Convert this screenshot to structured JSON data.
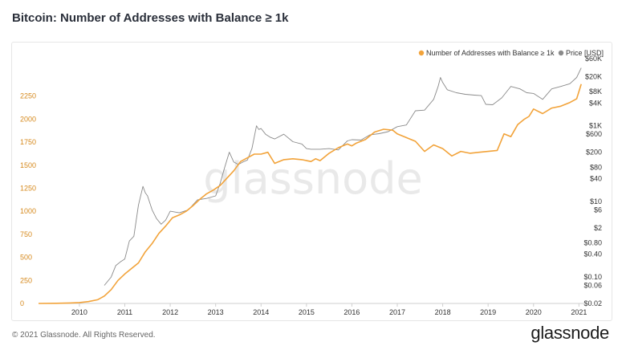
{
  "page": {
    "title": "Bitcoin: Number of Addresses with Balance ≥ 1k",
    "copyright": "© 2021 Glassnode. All Rights Reserved.",
    "brand": "glassnode",
    "watermark": "glassnode"
  },
  "colors": {
    "primary": "#f2a33a",
    "price": "#8a8a8a",
    "left_axis_text": "#d6891c"
  },
  "chart_data": {
    "type": "line",
    "title": "Bitcoin: Number of Addresses with Balance ≥ 1k",
    "legend_position": "top-right",
    "x_ticks": [
      "2010",
      "2011",
      "2012",
      "2013",
      "2014",
      "2015",
      "2016",
      "2017",
      "2018",
      "2019",
      "2020",
      "2021"
    ],
    "xlim": [
      2009.1,
      2021.1
    ],
    "y_left": {
      "label": "Number of Addresses with Balance ≥ 1k",
      "ticks": [
        0,
        250,
        500,
        750,
        1000,
        1250,
        1500,
        1750,
        2000,
        2250
      ],
      "range": [
        0,
        2500
      ]
    },
    "y_right": {
      "label": "Price [USD]",
      "scale": "log",
      "tick_labels": [
        "$60K",
        "$20K",
        "$8K",
        "$4K",
        "$1K",
        "$600",
        "$200",
        "$80",
        "$40",
        "$10",
        "$6",
        "$2",
        "$0.80",
        "$0.40",
        "$0.10",
        "$0.06",
        "$0.02"
      ],
      "tick_values": [
        60000,
        20000,
        8000,
        4000,
        1000,
        600,
        200,
        80,
        40,
        10,
        6,
        2,
        0.8,
        0.4,
        0.1,
        0.06,
        0.02
      ],
      "range": [
        0.02,
        60000
      ]
    },
    "series": [
      {
        "name": "Number of Addresses with Balance ≥ 1k",
        "color": "#f2a33a",
        "x": [
          2009.1,
          2009.5,
          2009.8,
          2010.0,
          2010.2,
          2010.4,
          2010.55,
          2010.7,
          2010.85,
          2011.0,
          2011.15,
          2011.3,
          2011.45,
          2011.6,
          2011.75,
          2011.9,
          2012.05,
          2012.2,
          2012.35,
          2012.5,
          2012.65,
          2012.8,
          2012.95,
          2013.1,
          2013.25,
          2013.4,
          2013.55,
          2013.7,
          2013.85,
          2014.0,
          2014.15,
          2014.3,
          2014.5,
          2014.7,
          2014.9,
          2015.1,
          2015.2,
          2015.3,
          2015.5,
          2015.7,
          2015.9,
          2016.0,
          2016.1,
          2016.3,
          2016.5,
          2016.7,
          2016.9,
          2017.0,
          2017.2,
          2017.4,
          2017.6,
          2017.8,
          2018.0,
          2018.2,
          2018.4,
          2018.6,
          2018.8,
          2019.0,
          2019.2,
          2019.35,
          2019.5,
          2019.65,
          2019.8,
          2019.9,
          2020.0,
          2020.2,
          2020.4,
          2020.6,
          2020.8,
          2020.95,
          2021.05
        ],
        "values": [
          0,
          2,
          5,
          10,
          20,
          40,
          80,
          150,
          250,
          320,
          380,
          440,
          560,
          650,
          760,
          840,
          930,
          960,
          1000,
          1060,
          1130,
          1190,
          1230,
          1280,
          1360,
          1440,
          1540,
          1580,
          1620,
          1620,
          1640,
          1520,
          1560,
          1570,
          1560,
          1540,
          1570,
          1550,
          1630,
          1690,
          1730,
          1710,
          1740,
          1780,
          1860,
          1890,
          1880,
          1840,
          1800,
          1760,
          1650,
          1720,
          1680,
          1600,
          1650,
          1630,
          1640,
          1650,
          1660,
          1840,
          1810,
          1940,
          2000,
          2030,
          2110,
          2060,
          2120,
          2140,
          2180,
          2220,
          2380
        ]
      },
      {
        "name": "Price [USD]",
        "color": "#8a8a8a",
        "x": [
          2010.55,
          2010.7,
          2010.8,
          2010.9,
          2011.0,
          2011.1,
          2011.2,
          2011.3,
          2011.4,
          2011.45,
          2011.5,
          2011.6,
          2011.7,
          2011.8,
          2011.9,
          2012.0,
          2012.2,
          2012.4,
          2012.6,
          2012.8,
          2013.0,
          2013.1,
          2013.2,
          2013.3,
          2013.4,
          2013.5,
          2013.6,
          2013.7,
          2013.8,
          2013.9,
          2013.95,
          2014.0,
          2014.1,
          2014.2,
          2014.3,
          2014.5,
          2014.7,
          2014.9,
          2015.0,
          2015.1,
          2015.3,
          2015.5,
          2015.7,
          2015.9,
          2016.0,
          2016.2,
          2016.4,
          2016.6,
          2016.8,
          2017.0,
          2017.2,
          2017.4,
          2017.6,
          2017.8,
          2017.9,
          2017.95,
          2018.0,
          2018.1,
          2018.3,
          2018.5,
          2018.7,
          2018.85,
          2018.95,
          2019.1,
          2019.3,
          2019.5,
          2019.7,
          2019.85,
          2020.0,
          2020.2,
          2020.4,
          2020.6,
          2020.8,
          2020.95,
          2021.05
        ],
        "values": [
          0.06,
          0.1,
          0.2,
          0.25,
          0.3,
          0.9,
          1.2,
          8,
          25,
          17,
          14,
          6,
          3.5,
          2.5,
          3.2,
          5.5,
          5,
          6,
          11,
          12,
          14,
          30,
          80,
          200,
          110,
          95,
          110,
          125,
          250,
          1000,
          800,
          850,
          600,
          500,
          450,
          600,
          380,
          330,
          250,
          240,
          240,
          250,
          230,
          400,
          430,
          420,
          580,
          620,
          700,
          950,
          1050,
          2500,
          2600,
          5000,
          11000,
          19000,
          14000,
          9000,
          7500,
          6800,
          6500,
          6300,
          3700,
          3600,
          5500,
          11000,
          9500,
          7500,
          7200,
          5000,
          9500,
          11000,
          13000,
          19000,
          34000
        ]
      }
    ]
  }
}
